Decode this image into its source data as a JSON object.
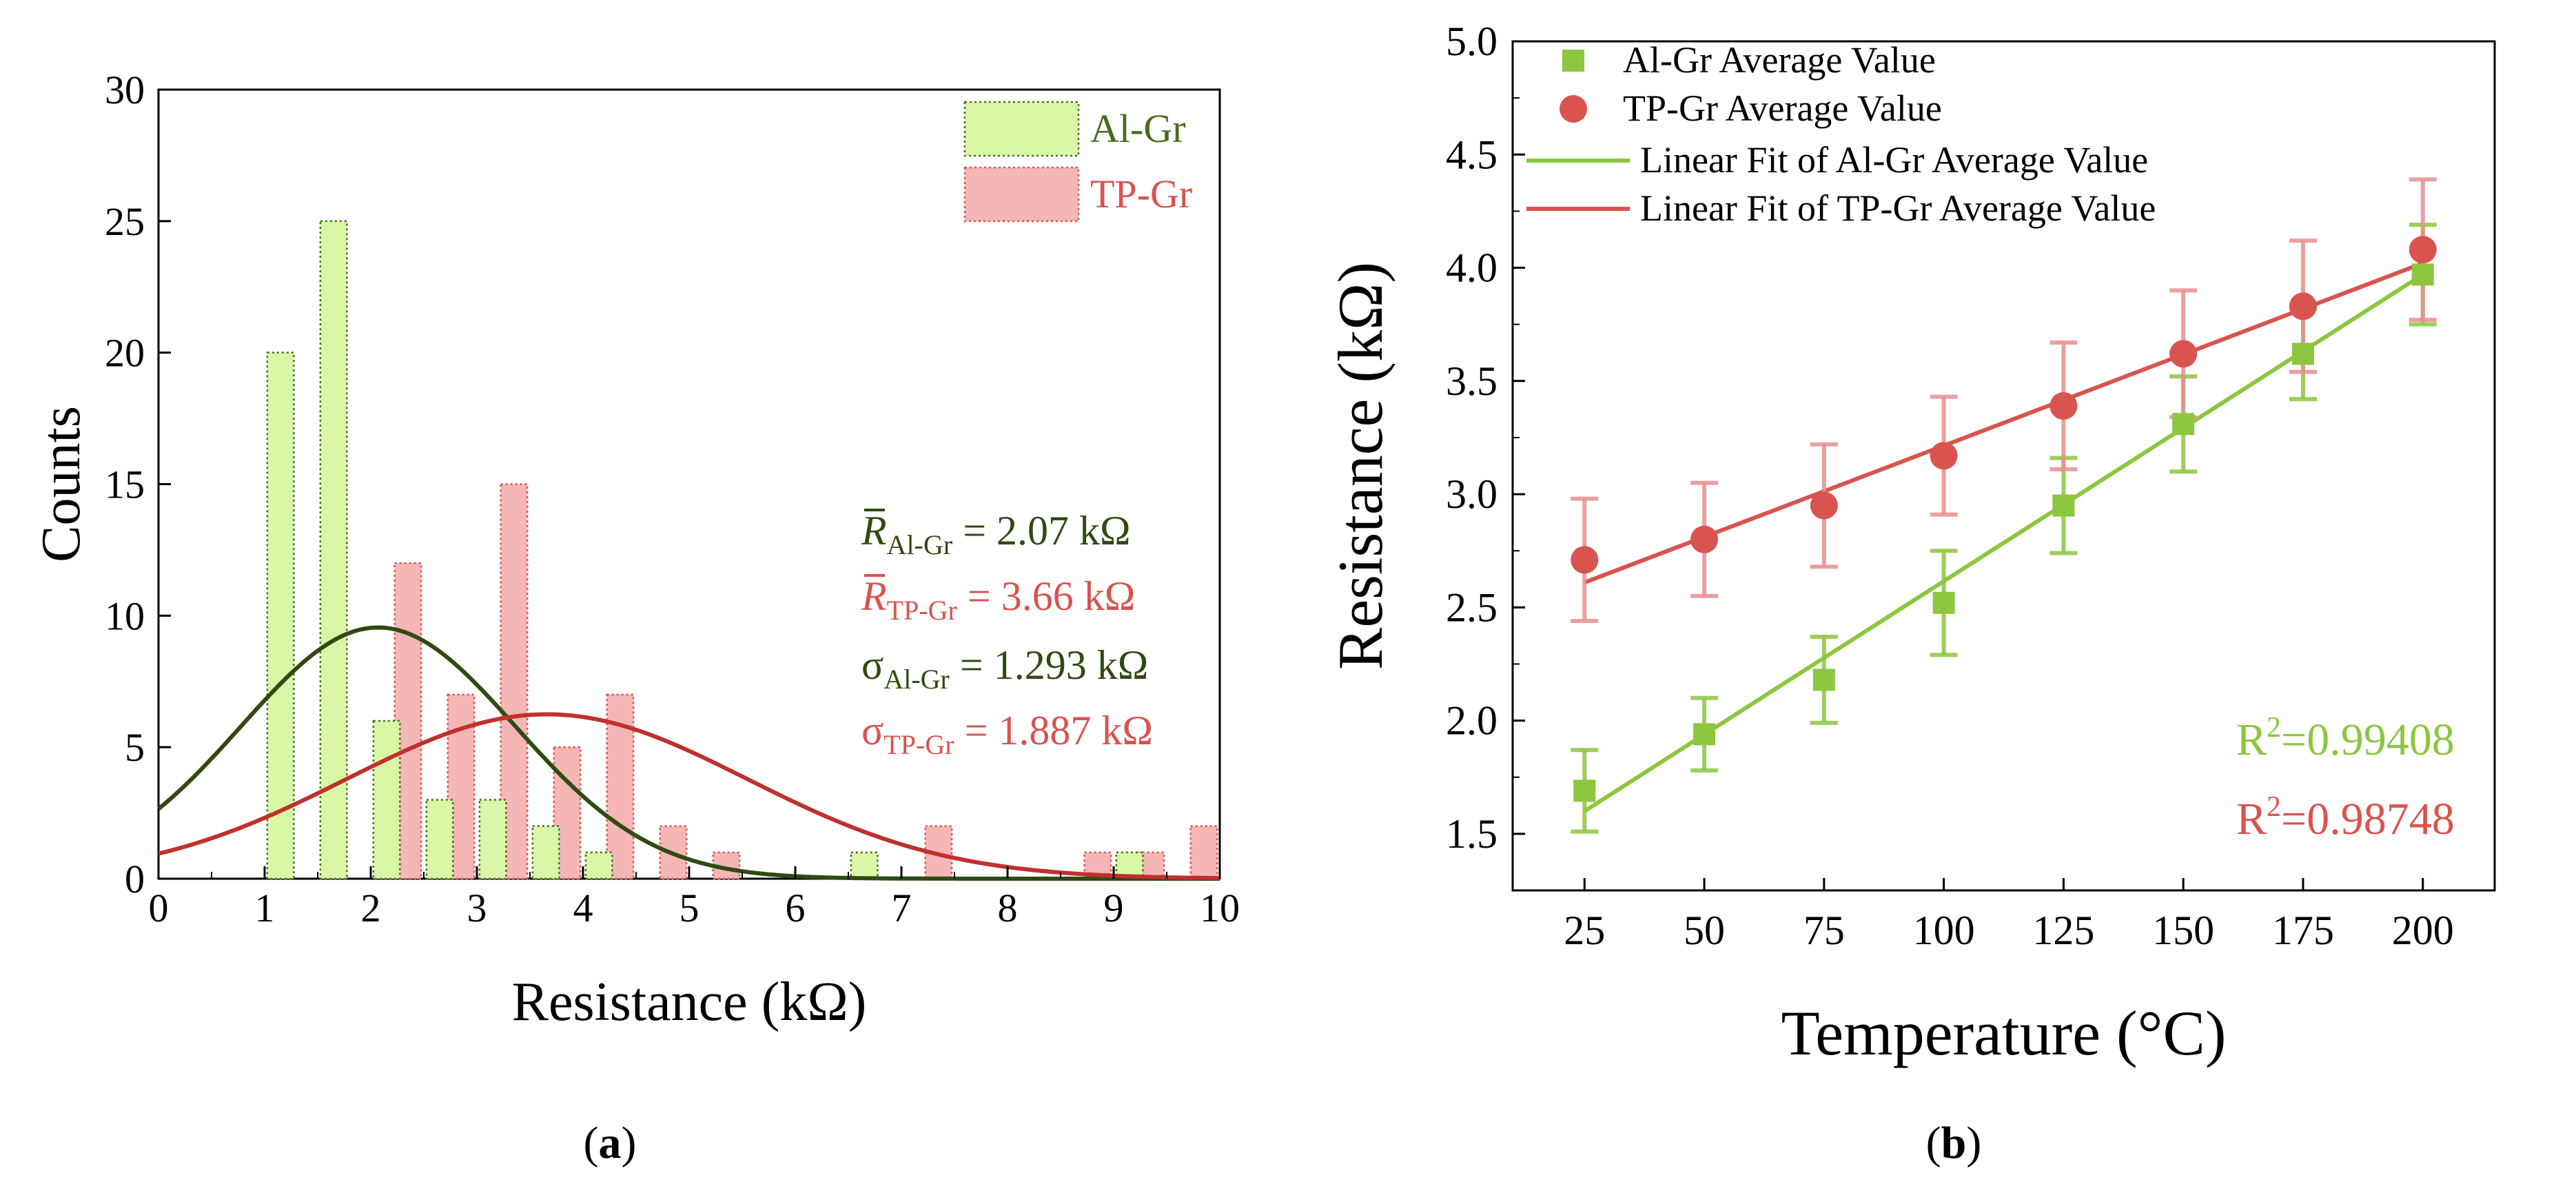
{
  "colors": {
    "al": "#8dc63f",
    "al_fill": "#d9f7a6",
    "al_edge": "#4a6b1f",
    "al_fit": "#2f4a12",
    "tp": "#d9534f",
    "tp_fill": "#f5b6b6",
    "tp_fit": "#c0302c",
    "err_al": "#8dc63f",
    "err_tp": "#e88f8f",
    "axis": "#000000"
  },
  "panels": {
    "a_label": "a",
    "b_label": "b"
  },
  "chart_data": [
    {
      "id": "a",
      "type": "bar",
      "xlabel": "Resistance (kΩ)",
      "ylabel": "Counts",
      "xlim": [
        0,
        10
      ],
      "ylim": [
        0,
        30
      ],
      "xticks": [
        "0",
        "1",
        "2",
        "3",
        "4",
        "5",
        "6",
        "7",
        "8",
        "9",
        "10"
      ],
      "yticks": [
        "0",
        "5",
        "10",
        "15",
        "20",
        "25",
        "30"
      ],
      "legend": [
        {
          "name": "Al-Gr",
          "key": "al"
        },
        {
          "name": "TP-Gr",
          "key": "tp"
        }
      ],
      "series": [
        {
          "name": "Al-Gr",
          "bars": [
            {
              "x": 1.15,
              "count": 20
            },
            {
              "x": 1.65,
              "count": 25
            },
            {
              "x": 2.15,
              "count": 6
            },
            {
              "x": 2.65,
              "count": 3
            },
            {
              "x": 3.15,
              "count": 3
            },
            {
              "x": 3.65,
              "count": 2
            },
            {
              "x": 4.15,
              "count": 1
            },
            {
              "x": 6.65,
              "count": 1
            },
            {
              "x": 9.15,
              "count": 1
            }
          ]
        },
        {
          "name": "TP-Gr",
          "bars": [
            {
              "x": 2.35,
              "count": 12
            },
            {
              "x": 2.85,
              "count": 7
            },
            {
              "x": 3.35,
              "count": 15
            },
            {
              "x": 3.85,
              "count": 5
            },
            {
              "x": 4.35,
              "count": 7
            },
            {
              "x": 4.85,
              "count": 2
            },
            {
              "x": 5.35,
              "count": 1
            },
            {
              "x": 7.35,
              "count": 2
            },
            {
              "x": 8.85,
              "count": 1
            },
            {
              "x": 9.35,
              "count": 1
            },
            {
              "x": 9.85,
              "count": 2
            }
          ]
        }
      ],
      "bin_width": 0.25,
      "fits": [
        {
          "name": "Al-Gr normal fit",
          "key": "al_fit",
          "mean": 2.07,
          "sigma": 1.293,
          "peak": 9.55
        },
        {
          "name": "TP-Gr normal fit",
          "key": "tp_fit",
          "mean": 3.66,
          "sigma": 1.887,
          "peak": 6.25
        }
      ],
      "annotations": [
        {
          "sym": "R",
          "bar": true,
          "sub": "Al-Gr",
          "rest": " = 2.07 kΩ",
          "key": "al_fit"
        },
        {
          "sym": "R",
          "bar": true,
          "sub": "TP-Gr",
          "rest": " = 3.66 kΩ",
          "key": "tp"
        },
        {
          "sym": "σ",
          "bar": false,
          "sub": "Al-Gr",
          "rest": " = 1.293 kΩ",
          "key": "al_fit"
        },
        {
          "sym": "σ",
          "bar": false,
          "sub": "TP-Gr",
          "rest": " = 1.887 kΩ",
          "key": "tp"
        }
      ]
    },
    {
      "id": "b",
      "type": "scatter",
      "xlabel": "Temperature (°C)",
      "ylabel": "Resistance (kΩ)",
      "xlim": [
        10,
        215
      ],
      "ylim": [
        1.25,
        5.0
      ],
      "xticks": [
        "25",
        "50",
        "75",
        "100",
        "125",
        "150",
        "175",
        "200"
      ],
      "yticks": [
        "1.5",
        "2.0",
        "2.5",
        "3.0",
        "3.5",
        "4.0",
        "4.5",
        "5.0"
      ],
      "x": [
        25,
        50,
        75,
        100,
        125,
        150,
        175,
        200
      ],
      "series": [
        {
          "name": "Al-Gr Average Value",
          "marker": "square",
          "key": "al",
          "values": [
            1.69,
            1.94,
            2.18,
            2.52,
            2.95,
            3.31,
            3.62,
            3.97
          ],
          "errors": [
            0.18,
            0.16,
            0.19,
            0.23,
            0.21,
            0.21,
            0.2,
            0.22
          ]
        },
        {
          "name": "TP-Gr Average Value",
          "marker": "circle",
          "key": "tp",
          "values": [
            2.71,
            2.8,
            2.95,
            3.17,
            3.39,
            3.62,
            3.83,
            4.08
          ],
          "errors": [
            0.27,
            0.25,
            0.27,
            0.26,
            0.28,
            0.28,
            0.29,
            0.31
          ]
        }
      ],
      "fits": [
        {
          "name": "Linear Fit of  Al-Gr Average Value",
          "key": "al",
          "x0": 25,
          "y0": 1.6,
          "x1": 200,
          "y1": 3.97
        },
        {
          "name": "Linear Fit of  TP-Gr Average Value",
          "key": "tp",
          "x0": 25,
          "y0": 2.61,
          "x1": 200,
          "y1": 4.02
        }
      ],
      "r2": [
        {
          "text": "0.99408",
          "key": "al"
        },
        {
          "text": "0.98748",
          "key": "tp"
        }
      ]
    }
  ]
}
